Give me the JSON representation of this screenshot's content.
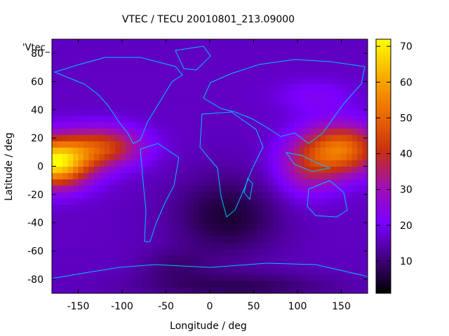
{
  "chart_data": {
    "type": "heatmap",
    "title": "VTEC / TECU 20010801_213.09000",
    "xlabel": "Longitude / deg",
    "ylabel": "Latitude / deg",
    "key_label": "'Vtec_",
    "xlim": [
      -180,
      180
    ],
    "ylim": [
      -90,
      90
    ],
    "x_ticks": [
      -150,
      -100,
      -50,
      0,
      50,
      100,
      150
    ],
    "y_ticks": [
      -80,
      -60,
      -40,
      -20,
      0,
      20,
      40,
      60,
      80
    ],
    "colorbar": {
      "min": 1,
      "max": 72,
      "ticks": [
        10,
        20,
        30,
        40,
        50,
        60,
        70
      ]
    },
    "grid": false,
    "overlay": "coastlines",
    "peaks": [
      {
        "lon": -170,
        "lat": 0,
        "value": 70
      },
      {
        "lon": 130,
        "lat": 10,
        "value": 50
      }
    ],
    "colors": {
      "coastline": "#00bfff",
      "palette_low": "#000000",
      "palette_mid": "#7b00ff",
      "palette_high": "#ffff00"
    }
  }
}
